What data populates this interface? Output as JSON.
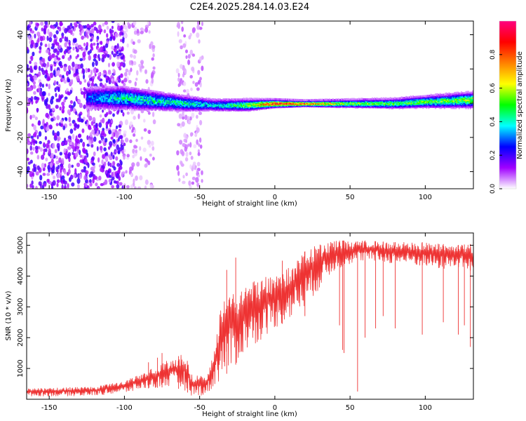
{
  "title": "C2E4.2025.284.14.03.E24",
  "chart_data": [
    {
      "type": "heatmap",
      "xlabel": "Height of straight line (km)",
      "ylabel": "Frequency (Hz)",
      "xlim": [
        -165,
        132
      ],
      "ylim": [
        -50,
        48
      ],
      "xticks": [
        -150,
        -100,
        -50,
        0,
        50,
        100
      ],
      "yticks": [
        -40,
        -20,
        0,
        20,
        40
      ],
      "colorbar": {
        "label": "Normalized spectral amplitude",
        "range": [
          0,
          1
        ],
        "ticks": [
          0.0,
          0.2,
          0.4,
          0.6,
          0.8
        ],
        "tick_labels": [
          "0.0",
          "0.2",
          "0.4",
          "0.6",
          "0.8"
        ],
        "colors": [
          "#ffffff",
          "#a000ff",
          "#0000ff",
          "#00ffff",
          "#00ff00",
          "#ffff00",
          "#ff8000",
          "#ff0000",
          "#ff0080"
        ]
      },
      "band_profile": {
        "x": [
          -125,
          -100,
          -60,
          -40,
          -20,
          0,
          20,
          50,
          80,
          100,
          132
        ],
        "center_hz": [
          3,
          3,
          0,
          -1,
          -1,
          0,
          0,
          0,
          0,
          1,
          2
        ],
        "half_width_hz": [
          6,
          6,
          4,
          3,
          3,
          2,
          1.5,
          2,
          2.5,
          3,
          4
        ],
        "peak_amplitude": [
          0.3,
          0.45,
          0.45,
          0.4,
          0.55,
          0.95,
          0.85,
          0.6,
          0.55,
          0.55,
          0.6
        ]
      },
      "noise_regions": [
        {
          "x_range": [
            -165,
            -100
          ],
          "amplitude": 0.2,
          "density": "high"
        },
        {
          "x_range": [
            -100,
            -80
          ],
          "amplitude": 0.08,
          "density": "low"
        },
        {
          "x_range": [
            -65,
            -48
          ],
          "amplitude": 0.08,
          "density": "low"
        }
      ]
    },
    {
      "type": "line",
      "xlabel": "Height of straight line (km)",
      "ylabel": "SNR (10 * v/v)",
      "xlim": [
        -165,
        132
      ],
      "ylim": [
        0,
        5400
      ],
      "xticks": [
        -150,
        -100,
        -50,
        0,
        50,
        100
      ],
      "yticks": [
        1000,
        2000,
        3000,
        4000,
        5000
      ],
      "color": "#ee3333",
      "envelope": {
        "x": [
          -165,
          -140,
          -120,
          -100,
          -85,
          -70,
          -60,
          -55,
          -45,
          -40,
          -35,
          -28,
          -20,
          -10,
          0,
          10,
          15,
          20,
          25,
          30,
          40,
          47,
          50,
          60,
          80,
          100,
          110,
          120,
          132
        ],
        "upper": [
          350,
          380,
          400,
          600,
          900,
          1300,
          1500,
          800,
          800,
          1800,
          3300,
          3500,
          3700,
          3900,
          4100,
          4300,
          4600,
          4800,
          5050,
          5100,
          5150,
          5150,
          5100,
          5150,
          5100,
          5100,
          5050,
          5000,
          5050
        ],
        "lower": [
          100,
          100,
          120,
          200,
          350,
          400,
          300,
          100,
          150,
          400,
          700,
          1000,
          1500,
          1900,
          2300,
          2600,
          2800,
          3000,
          3300,
          3600,
          4200,
          4300,
          4400,
          4500,
          4400,
          4300,
          4200,
          4300,
          4100
        ]
      },
      "spikes_down": [
        {
          "x": 20,
          "value": 2700
        },
        {
          "x": 43,
          "value": 2400
        },
        {
          "x": 45,
          "value": 1600
        },
        {
          "x": 46,
          "value": 1500
        },
        {
          "x": 55,
          "value": 250
        },
        {
          "x": 60,
          "value": 2000
        },
        {
          "x": 67,
          "value": 2300
        },
        {
          "x": 72,
          "value": 2700
        },
        {
          "x": 80,
          "value": 2300
        },
        {
          "x": 98,
          "value": 2100
        },
        {
          "x": 112,
          "value": 2500
        },
        {
          "x": 122,
          "value": 2100
        },
        {
          "x": 126,
          "value": 2400
        },
        {
          "x": 130,
          "value": 1700
        }
      ],
      "spikes_up": [
        {
          "x": -84,
          "value": 1200
        },
        {
          "x": -78,
          "value": 1350
        },
        {
          "x": -75,
          "value": 1500
        },
        {
          "x": -64,
          "value": 1400
        },
        {
          "x": -58,
          "value": 1100
        },
        {
          "x": -32,
          "value": 4200
        },
        {
          "x": -26,
          "value": 4600
        },
        {
          "x": 5,
          "value": 4500
        }
      ]
    }
  ]
}
